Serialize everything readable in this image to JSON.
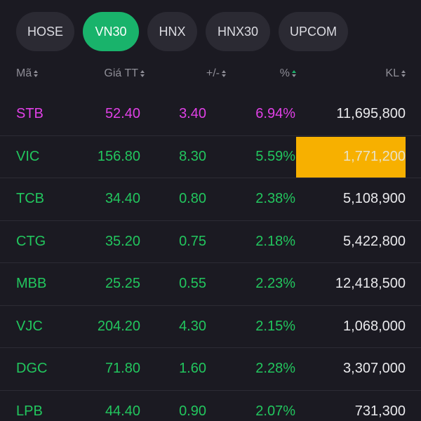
{
  "tabs": [
    {
      "label": "HOSE",
      "active": false
    },
    {
      "label": "VN30",
      "active": true
    },
    {
      "label": "HNX",
      "active": false
    },
    {
      "label": "HNX30",
      "active": false
    },
    {
      "label": "UPCOM",
      "active": false
    }
  ],
  "columns": {
    "symbol": "Mã",
    "price": "Giá TT",
    "change": "+/-",
    "percent": "%",
    "volume": "KL"
  },
  "sorted_column": "percent",
  "colors": {
    "accent": "#19b36b",
    "ceiling": "#e040e6",
    "up": "#22c65e",
    "highlight": "#f7b000",
    "background": "#1b1a22"
  },
  "rows": [
    {
      "symbol": "STB",
      "price": "52.40",
      "change": "3.40",
      "percent": "6.94%",
      "volume": "11,695,800",
      "status": "ceiling",
      "volume_highlight": false
    },
    {
      "symbol": "VIC",
      "price": "156.80",
      "change": "8.30",
      "percent": "5.59%",
      "volume": "1,771,200",
      "status": "up",
      "volume_highlight": true
    },
    {
      "symbol": "TCB",
      "price": "34.40",
      "change": "0.80",
      "percent": "2.38%",
      "volume": "5,108,900",
      "status": "up",
      "volume_highlight": false
    },
    {
      "symbol": "CTG",
      "price": "35.20",
      "change": "0.75",
      "percent": "2.18%",
      "volume": "5,422,800",
      "status": "up",
      "volume_highlight": false
    },
    {
      "symbol": "MBB",
      "price": "25.25",
      "change": "0.55",
      "percent": "2.23%",
      "volume": "12,418,500",
      "status": "up",
      "volume_highlight": false
    },
    {
      "symbol": "VJC",
      "price": "204.20",
      "change": "4.30",
      "percent": "2.15%",
      "volume": "1,068,000",
      "status": "up",
      "volume_highlight": false
    },
    {
      "symbol": "DGC",
      "price": "71.80",
      "change": "1.60",
      "percent": "2.28%",
      "volume": "3,307,000",
      "status": "up",
      "volume_highlight": false
    },
    {
      "symbol": "LPB",
      "price": "44.40",
      "change": "0.90",
      "percent": "2.07%",
      "volume": "731,300",
      "status": "up",
      "volume_highlight": false
    }
  ]
}
